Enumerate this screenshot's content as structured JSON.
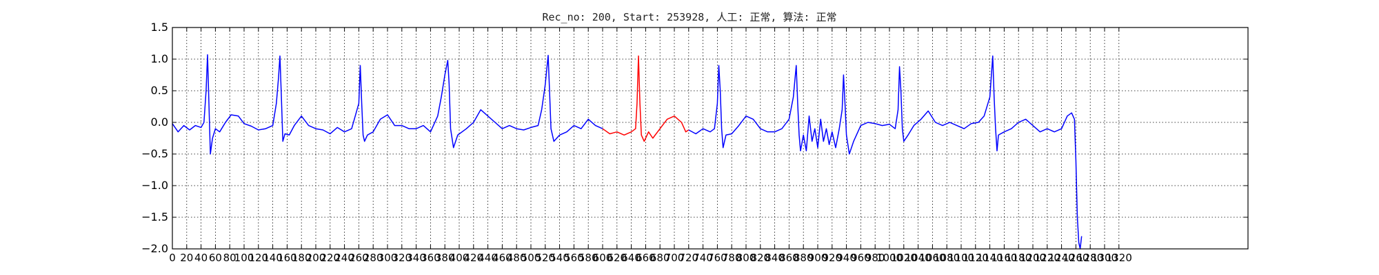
{
  "chart_data": {
    "type": "line",
    "title": "Rec_no: 200, Start: 253928, 人工: 正常, 算法: 正常",
    "xlabel": "",
    "ylabel": "",
    "xlim": [
      0,
      1500
    ],
    "ylim": [
      -2.0,
      1.5
    ],
    "grid": true,
    "grid_style": "dotted",
    "yticks": [
      1.5,
      1.0,
      0.5,
      0.0,
      -0.5,
      -1.0,
      -1.5,
      -2.0
    ],
    "ytick_labels": [
      "1.5",
      "1.0",
      "0.5",
      "0.0",
      "−0.5",
      "−1.0",
      "−1.5",
      "−2.0"
    ],
    "xticks": [
      0,
      20,
      40,
      60,
      80,
      100,
      120,
      140,
      160,
      180,
      200,
      220,
      240,
      260,
      280,
      300,
      320,
      340,
      360,
      380,
      400,
      420,
      440,
      460,
      480,
      500,
      520,
      540,
      560,
      580,
      600,
      620,
      640,
      660,
      680,
      700,
      720,
      740,
      760,
      780,
      800,
      820,
      840,
      860,
      880,
      900,
      920,
      940,
      960,
      980,
      1000,
      1020,
      1040,
      1060,
      1080,
      1100,
      1120,
      1140,
      1160,
      1180,
      1200,
      1220,
      1240,
      1260,
      1280,
      1300,
      1320
    ],
    "xtick_labels": [
      "0",
      "20",
      "40",
      "60",
      "80",
      "100",
      "120",
      "140",
      "160",
      "180",
      "200",
      "220",
      "240",
      "260",
      "280",
      "300",
      "320",
      "340",
      "360",
      "380",
      "400",
      "420",
      "440",
      "460",
      "480",
      "500",
      "520",
      "540",
      "560",
      "580",
      "600",
      "620",
      "640",
      "660",
      "680",
      "700",
      "720",
      "740",
      "760",
      "780",
      "800",
      "820",
      "840",
      "860",
      "880",
      "900",
      "920",
      "940",
      "960",
      "980",
      "1000",
      "1020",
      "1040",
      "1060",
      "1080",
      "1100",
      "1120",
      "1140",
      "1160",
      "1180",
      "1200",
      "1220",
      "1240",
      "1260",
      "1280",
      "1300",
      "1320"
    ],
    "series": [
      {
        "color": "#0000ff",
        "x": [
          0,
          8,
          16,
          24,
          32,
          40,
          44,
          47,
          49,
          51,
          53,
          56,
          60,
          66,
          74,
          82,
          92,
          100,
          110,
          120,
          130,
          140,
          145,
          148,
          150,
          152,
          154,
          157,
          163,
          170,
          180,
          190,
          200,
          210,
          220,
          230,
          240,
          250,
          260,
          262,
          264,
          266,
          268,
          272,
          280,
          290,
          300,
          310,
          320,
          330,
          340,
          350,
          360,
          370,
          375,
          380,
          384,
          386,
          388,
          392,
          398,
          410,
          420,
          430,
          440,
          450,
          460,
          470,
          480,
          490,
          500,
          510,
          515,
          520,
          524,
          526,
          528,
          532,
          540,
          550,
          560,
          570,
          580,
          590,
          600
        ],
        "y": [
          -0.02,
          -0.15,
          -0.05,
          -0.12,
          -0.05,
          -0.08,
          0.0,
          0.5,
          1.07,
          0.3,
          -0.5,
          -0.25,
          -0.1,
          -0.15,
          0.0,
          0.12,
          0.1,
          -0.02,
          -0.06,
          -0.12,
          -0.1,
          -0.05,
          0.3,
          0.7,
          1.05,
          0.4,
          -0.3,
          -0.18,
          -0.2,
          -0.05,
          0.1,
          -0.05,
          -0.1,
          -0.12,
          -0.18,
          -0.08,
          -0.15,
          -0.1,
          0.3,
          0.9,
          0.3,
          -0.2,
          -0.3,
          -0.2,
          -0.15,
          0.05,
          0.12,
          -0.05,
          -0.05,
          -0.1,
          -0.1,
          -0.05,
          -0.15,
          0.1,
          0.4,
          0.75,
          0.98,
          0.6,
          -0.1,
          -0.4,
          -0.2,
          -0.1,
          0.0,
          0.2,
          0.1,
          0.0,
          -0.1,
          -0.05,
          -0.1,
          -0.12,
          -0.08,
          -0.05,
          0.2,
          0.6,
          1.06,
          0.5,
          -0.1,
          -0.3,
          -0.2,
          -0.15,
          -0.05,
          -0.1,
          0.05,
          -0.05,
          -0.1
        ]
      },
      {
        "color": "#ff0000",
        "x": [
          600,
          610,
          620,
          630,
          640,
          646,
          648,
          650,
          652,
          654,
          658,
          664,
          670,
          680,
          690,
          700,
          710,
          716,
          720
        ],
        "y": [
          -0.1,
          -0.18,
          -0.15,
          -0.2,
          -0.15,
          -0.1,
          0.3,
          1.05,
          0.3,
          -0.2,
          -0.3,
          -0.15,
          -0.25,
          -0.1,
          0.05,
          0.1,
          0.0,
          -0.15,
          -0.12
        ]
      },
      {
        "color": "#0000ff",
        "x": [
          720,
          730,
          740,
          750,
          756,
          760,
          762,
          764,
          766,
          768,
          772,
          780,
          790,
          800,
          810,
          820,
          830,
          840,
          850,
          860,
          866,
          870,
          872,
          874,
          876,
          880,
          884,
          888,
          892,
          896,
          900,
          904,
          908,
          912,
          916,
          920,
          925,
          930,
          934,
          936,
          938,
          940,
          944,
          950,
          960,
          970,
          980,
          990,
          1000,
          1008,
          1012,
          1014,
          1016,
          1018,
          1020,
          1026,
          1034,
          1044,
          1054,
          1064,
          1074,
          1084,
          1094,
          1104,
          1114,
          1124,
          1132,
          1140,
          1144,
          1146,
          1148,
          1150,
          1152,
          1160,
          1170,
          1180,
          1190,
          1200,
          1210,
          1220,
          1230,
          1240,
          1248,
          1254,
          1258,
          1260,
          1262,
          1264,
          1266,
          1268
        ],
        "y": [
          -0.12,
          -0.18,
          -0.1,
          -0.15,
          -0.1,
          0.3,
          0.9,
          0.5,
          -0.1,
          -0.4,
          -0.2,
          -0.18,
          -0.05,
          0.1,
          0.05,
          -0.1,
          -0.15,
          -0.15,
          -0.1,
          0.05,
          0.4,
          0.9,
          0.3,
          -0.2,
          -0.45,
          -0.2,
          -0.45,
          0.1,
          -0.3,
          -0.1,
          -0.4,
          0.05,
          -0.3,
          -0.1,
          -0.35,
          -0.15,
          -0.4,
          -0.1,
          0.2,
          0.75,
          0.3,
          -0.2,
          -0.5,
          -0.3,
          -0.05,
          -0.0,
          -0.02,
          -0.05,
          -0.03,
          -0.1,
          0.2,
          0.88,
          0.5,
          -0.1,
          -0.3,
          -0.2,
          -0.05,
          0.05,
          0.18,
          0.0,
          -0.05,
          0.0,
          -0.05,
          -0.1,
          -0.02,
          0.0,
          0.1,
          0.4,
          1.05,
          0.4,
          -0.1,
          -0.45,
          -0.2,
          -0.15,
          -0.1,
          0.0,
          0.05,
          -0.05,
          -0.15,
          -0.1,
          -0.15,
          -0.1,
          0.1,
          0.15,
          0.05,
          -0.6,
          -1.5,
          -1.9,
          -2.0,
          -1.8
        ]
      }
    ]
  }
}
